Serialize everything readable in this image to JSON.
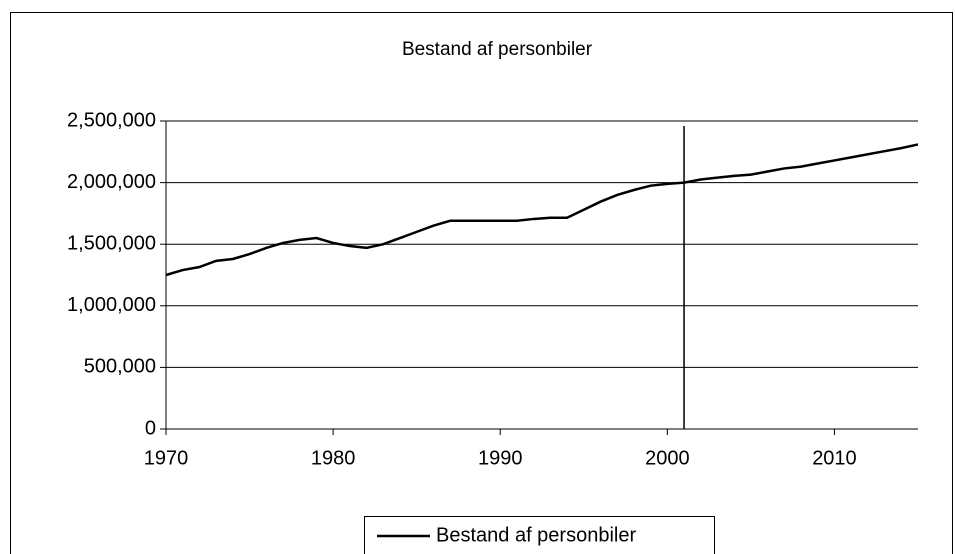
{
  "chart_data": {
    "type": "line",
    "title": "Bestand af personbiler",
    "x": [
      1970,
      1971,
      1972,
      1973,
      1974,
      1975,
      1976,
      1977,
      1978,
      1979,
      1980,
      1981,
      1982,
      1983,
      1984,
      1985,
      1986,
      1987,
      1988,
      1989,
      1990,
      1991,
      1992,
      1993,
      1994,
      1995,
      1996,
      1997,
      1998,
      1999,
      2000,
      2001,
      2002,
      2003,
      2004,
      2005,
      2006,
      2007,
      2008,
      2009,
      2010,
      2011,
      2012,
      2013,
      2014,
      2015
    ],
    "series": [
      {
        "name": "Bestand af personbiler",
        "color": "#000000",
        "values": [
          1250000,
          1290000,
          1315000,
          1365000,
          1380000,
          1420000,
          1470000,
          1510000,
          1535000,
          1550000,
          1510000,
          1485000,
          1470000,
          1500000,
          1550000,
          1600000,
          1650000,
          1690000,
          1690000,
          1690000,
          1690000,
          1690000,
          1705000,
          1715000,
          1715000,
          1780000,
          1845000,
          1900000,
          1940000,
          1975000,
          1990000,
          2000000,
          2025000,
          2040000,
          2055000,
          2065000,
          2090000,
          2115000,
          2130000,
          2155000,
          2180000,
          2205000,
          2230000,
          2255000,
          2280000,
          2310000
        ]
      }
    ],
    "xlim": [
      1970,
      2015
    ],
    "xticks": [
      1970,
      1980,
      1990,
      2000,
      2010
    ],
    "ylim": [
      0,
      2500000
    ],
    "yticks": [
      0,
      {
        "value": 500000,
        "label": "500,000"
      },
      {
        "value": 1000000,
        "label": "1,000,000"
      },
      {
        "value": 1500000,
        "label": "1,500,000"
      },
      {
        "value": 2000000,
        "label": "2,000,000"
      },
      {
        "value": 2500000,
        "label": "2,500,000"
      }
    ],
    "grid": true,
    "vline": 2001,
    "legend": "bottom"
  }
}
